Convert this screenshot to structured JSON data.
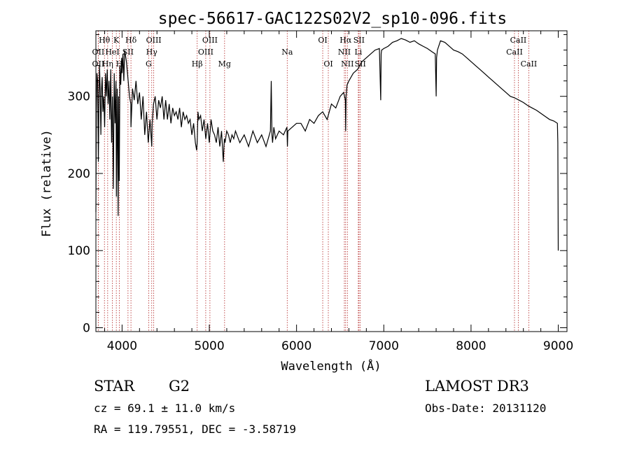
{
  "chart_data": {
    "type": "line",
    "title": "spec-56617-GAC122S02V2_sp10-096.fits",
    "xlabel": "Wavelength (Å)",
    "ylabel": "Flux (relative)",
    "xlim": [
      3700,
      9100
    ],
    "ylim": [
      -5,
      385
    ],
    "x_ticks": [
      4000,
      5000,
      6000,
      7000,
      8000,
      9000
    ],
    "y_ticks": [
      0,
      100,
      200,
      300
    ],
    "series": [
      {
        "name": "flux",
        "x": [
          3700,
          3705,
          3712,
          3720,
          3728,
          3735,
          3742,
          3750,
          3757,
          3765,
          3772,
          3780,
          3790,
          3800,
          3810,
          3820,
          3830,
          3840,
          3850,
          3860,
          3870,
          3880,
          3890,
          3900,
          3910,
          3920,
          3930,
          3935,
          3945,
          3955,
          3960,
          3968,
          3975,
          3985,
          3995,
          4000,
          4010,
          4020,
          4030,
          4050,
          4070,
          4085,
          4100,
          4102,
          4120,
          4140,
          4160,
          4180,
          4200,
          4220,
          4240,
          4260,
          4280,
          4300,
          4320,
          4340,
          4345,
          4360,
          4380,
          4400,
          4420,
          4440,
          4460,
          4480,
          4500,
          4520,
          4540,
          4560,
          4580,
          4600,
          4620,
          4640,
          4660,
          4680,
          4700,
          4720,
          4740,
          4760,
          4780,
          4800,
          4820,
          4840,
          4855,
          4861,
          4870,
          4880,
          4900,
          4920,
          4940,
          4960,
          4980,
          5000,
          5020,
          5040,
          5060,
          5080,
          5100,
          5120,
          5140,
          5160,
          5172,
          5180,
          5200,
          5220,
          5240,
          5260,
          5280,
          5300,
          5350,
          5400,
          5450,
          5500,
          5550,
          5600,
          5650,
          5700,
          5710,
          5718,
          5725,
          5740,
          5760,
          5800,
          5850,
          5890,
          5895,
          5900,
          5950,
          6000,
          6050,
          6100,
          6150,
          6200,
          6250,
          6300,
          6350,
          6400,
          6450,
          6500,
          6540,
          6560,
          6563,
          6568,
          6580,
          6600,
          6650,
          6700,
          6750,
          6800,
          6850,
          6900,
          6950,
          6965,
          6970,
          6975,
          7000,
          7050,
          7100,
          7150,
          7200,
          7250,
          7300,
          7350,
          7400,
          7450,
          7500,
          7550,
          7590,
          7600,
          7605,
          7615,
          7650,
          7700,
          7750,
          7800,
          7850,
          7900,
          7950,
          8000,
          8050,
          8100,
          8150,
          8200,
          8250,
          8300,
          8350,
          8400,
          8450,
          8500,
          8550,
          8600,
          8650,
          8700,
          8750,
          8800,
          8850,
          8900,
          8950,
          8990,
          8995,
          9000
        ],
        "y": [
          150,
          280,
          330,
          320,
          215,
          300,
          340,
          305,
          250,
          310,
          325,
          280,
          300,
          260,
          330,
          300,
          335,
          290,
          320,
          270,
          335,
          240,
          300,
          180,
          330,
          265,
          320,
          170,
          310,
          145,
          300,
          190,
          340,
          315,
          350,
          330,
          355,
          320,
          360,
          345,
          320,
          300,
          290,
          260,
          310,
          295,
          320,
          290,
          305,
          270,
          300,
          250,
          280,
          240,
          270,
          235,
          265,
          290,
          300,
          270,
          295,
          285,
          300,
          270,
          295,
          270,
          290,
          265,
          285,
          275,
          280,
          270,
          285,
          260,
          280,
          270,
          275,
          265,
          270,
          250,
          265,
          240,
          230,
          240,
          280,
          270,
          275,
          255,
          270,
          245,
          265,
          240,
          270,
          255,
          250,
          240,
          260,
          235,
          255,
          215,
          245,
          240,
          255,
          250,
          240,
          250,
          245,
          255,
          240,
          250,
          235,
          255,
          240,
          250,
          235,
          255,
          320,
          250,
          240,
          260,
          245,
          255,
          250,
          260,
          235,
          255,
          260,
          265,
          265,
          255,
          270,
          265,
          275,
          280,
          270,
          290,
          285,
          300,
          305,
          295,
          255,
          300,
          315,
          320,
          330,
          335,
          345,
          350,
          355,
          360,
          362,
          295,
          355,
          360,
          362,
          365,
          370,
          372,
          375,
          373,
          370,
          372,
          368,
          365,
          362,
          358,
          355,
          300,
          350,
          360,
          372,
          370,
          365,
          360,
          358,
          355,
          350,
          345,
          340,
          335,
          330,
          325,
          320,
          315,
          310,
          305,
          300,
          298,
          295,
          292,
          288,
          285,
          282,
          278,
          274,
          270,
          268,
          265,
          240,
          100
        ]
      }
    ],
    "spectral_lines": [
      {
        "label": "Hθ",
        "x": 3798,
        "row": 0
      },
      {
        "label": "OII",
        "x": 3727,
        "row": 1
      },
      {
        "label": "OII",
        "x": 3727,
        "row": 2
      },
      {
        "label": "K",
        "x": 3934,
        "row": 0
      },
      {
        "label": "HeI",
        "x": 3889,
        "row": 1
      },
      {
        "label": "Hη",
        "x": 3835,
        "row": 2
      },
      {
        "label": "SII",
        "x": 4068,
        "row": 1
      },
      {
        "label": "H",
        "x": 3968,
        "row": 2
      },
      {
        "label": "Hδ",
        "x": 4102,
        "row": 0
      },
      {
        "label": "OIII",
        "x": 4363,
        "row": 0
      },
      {
        "label": "Hγ",
        "x": 4340,
        "row": 1
      },
      {
        "label": "G",
        "x": 4305,
        "row": 2
      },
      {
        "label": "OIII",
        "x": 5007,
        "row": 0
      },
      {
        "label": "OIII",
        "x": 4959,
        "row": 1
      },
      {
        "label": "Hβ",
        "x": 4861,
        "row": 2
      },
      {
        "label": "Mg",
        "x": 5175,
        "row": 2
      },
      {
        "label": "Na",
        "x": 5893,
        "row": 1
      },
      {
        "label": "OI",
        "x": 6300,
        "row": 0
      },
      {
        "label": "OI",
        "x": 6364,
        "row": 2
      },
      {
        "label": "Hα",
        "x": 6563,
        "row": 0
      },
      {
        "label": "SII",
        "x": 6716,
        "row": 0
      },
      {
        "label": "NII",
        "x": 6548,
        "row": 1
      },
      {
        "label": "Li",
        "x": 6708,
        "row": 1
      },
      {
        "label": "NII",
        "x": 6583,
        "row": 2
      },
      {
        "label": "SII",
        "x": 6731,
        "row": 2
      },
      {
        "label": "CaII",
        "x": 8542,
        "row": 0
      },
      {
        "label": "CaII",
        "x": 8498,
        "row": 1
      },
      {
        "label": "CaII",
        "x": 8662,
        "row": 2
      }
    ]
  },
  "info": {
    "object_class": "STAR",
    "subclass": "G2",
    "survey": "LAMOST DR3",
    "redshift": "cz = 69.1 ± 11.0 km/s",
    "obs_date": "Obs-Date: 20131120",
    "coordinates": "RA = 119.79551, DEC =  -3.58719"
  },
  "colors": {
    "line_marker": "#b22222",
    "spectrum": "#000000"
  }
}
